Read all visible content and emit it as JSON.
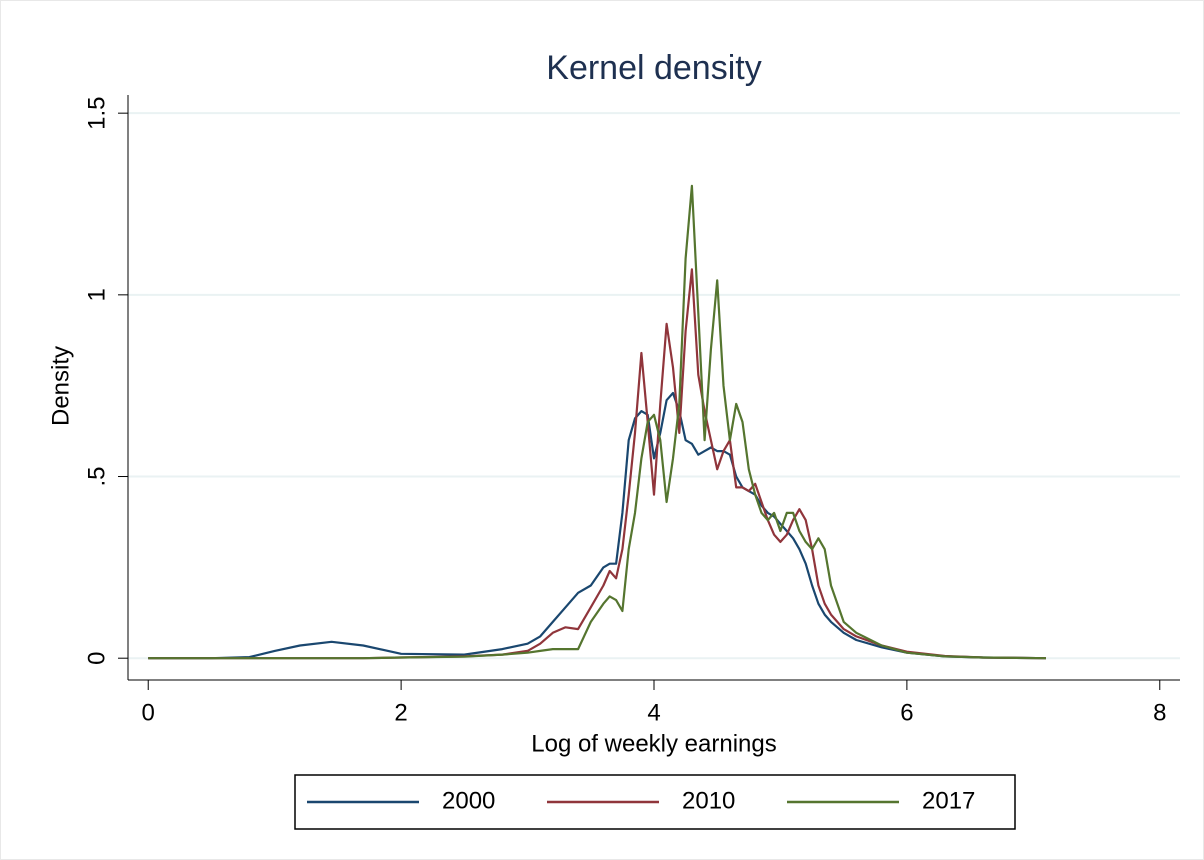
{
  "chart_data": {
    "type": "line",
    "title": "Kernel density",
    "x_label": "Log of  weekly earnings",
    "y_label": "Density",
    "x": [
      0,
      0.5,
      0.8,
      1.0,
      1.2,
      1.45,
      1.7,
      2.0,
      2.5,
      2.8,
      3.0,
      3.1,
      3.2,
      3.3,
      3.4,
      3.5,
      3.6,
      3.65,
      3.7,
      3.75,
      3.8,
      3.85,
      3.9,
      3.95,
      4.0,
      4.05,
      4.1,
      4.15,
      4.2,
      4.25,
      4.3,
      4.35,
      4.4,
      4.45,
      4.5,
      4.55,
      4.6,
      4.65,
      4.7,
      4.75,
      4.8,
      4.85,
      4.9,
      4.95,
      5.0,
      5.05,
      5.1,
      5.15,
      5.2,
      5.25,
      5.3,
      5.35,
      5.4,
      5.5,
      5.6,
      5.8,
      6.0,
      6.3,
      6.6,
      7.1
    ],
    "series": [
      {
        "name": "2000",
        "color": "#1a476f",
        "values": [
          0,
          0,
          0.003,
          0.02,
          0.035,
          0.045,
          0.035,
          0.012,
          0.01,
          0.025,
          0.04,
          0.06,
          0.1,
          0.14,
          0.18,
          0.2,
          0.25,
          0.26,
          0.26,
          0.4,
          0.6,
          0.66,
          0.68,
          0.67,
          0.55,
          0.62,
          0.71,
          0.73,
          0.68,
          0.6,
          0.59,
          0.56,
          0.57,
          0.58,
          0.57,
          0.57,
          0.56,
          0.5,
          0.47,
          0.46,
          0.45,
          0.42,
          0.4,
          0.39,
          0.37,
          0.35,
          0.33,
          0.3,
          0.26,
          0.2,
          0.15,
          0.12,
          0.1,
          0.07,
          0.05,
          0.03,
          0.015,
          0.005,
          0.002,
          0
        ]
      },
      {
        "name": "2010",
        "color": "#90353b",
        "values": [
          0,
          0,
          0,
          0,
          0,
          0,
          0,
          0.002,
          0.005,
          0.01,
          0.02,
          0.04,
          0.07,
          0.085,
          0.08,
          0.14,
          0.2,
          0.24,
          0.22,
          0.3,
          0.45,
          0.62,
          0.84,
          0.65,
          0.45,
          0.7,
          0.92,
          0.8,
          0.62,
          0.9,
          1.07,
          0.78,
          0.68,
          0.6,
          0.52,
          0.57,
          0.6,
          0.47,
          0.47,
          0.46,
          0.48,
          0.43,
          0.38,
          0.34,
          0.32,
          0.34,
          0.38,
          0.41,
          0.38,
          0.3,
          0.2,
          0.15,
          0.12,
          0.08,
          0.06,
          0.035,
          0.018,
          0.006,
          0.002,
          0
        ]
      },
      {
        "name": "2017",
        "color": "#55752f",
        "values": [
          0,
          0,
          0,
          0,
          0,
          0,
          0,
          0.002,
          0.004,
          0.01,
          0.015,
          0.02,
          0.025,
          0.025,
          0.025,
          0.1,
          0.15,
          0.17,
          0.16,
          0.13,
          0.3,
          0.4,
          0.55,
          0.65,
          0.67,
          0.6,
          0.43,
          0.55,
          0.7,
          1.1,
          1.3,
          0.95,
          0.6,
          0.85,
          1.04,
          0.75,
          0.6,
          0.7,
          0.65,
          0.52,
          0.45,
          0.4,
          0.38,
          0.4,
          0.35,
          0.4,
          0.4,
          0.35,
          0.32,
          0.3,
          0.33,
          0.3,
          0.2,
          0.1,
          0.07,
          0.035,
          0.015,
          0.005,
          0.002,
          0
        ]
      }
    ],
    "xlim": [
      -0.16,
      8.16
    ],
    "ylim": [
      -0.06,
      1.55
    ],
    "xticks": [
      0,
      2,
      4,
      6,
      8
    ],
    "yticks": [
      0,
      {
        "value": 0.5,
        "label": ".5"
      },
      1,
      1.5
    ],
    "grid": true,
    "legend": "bottom"
  }
}
